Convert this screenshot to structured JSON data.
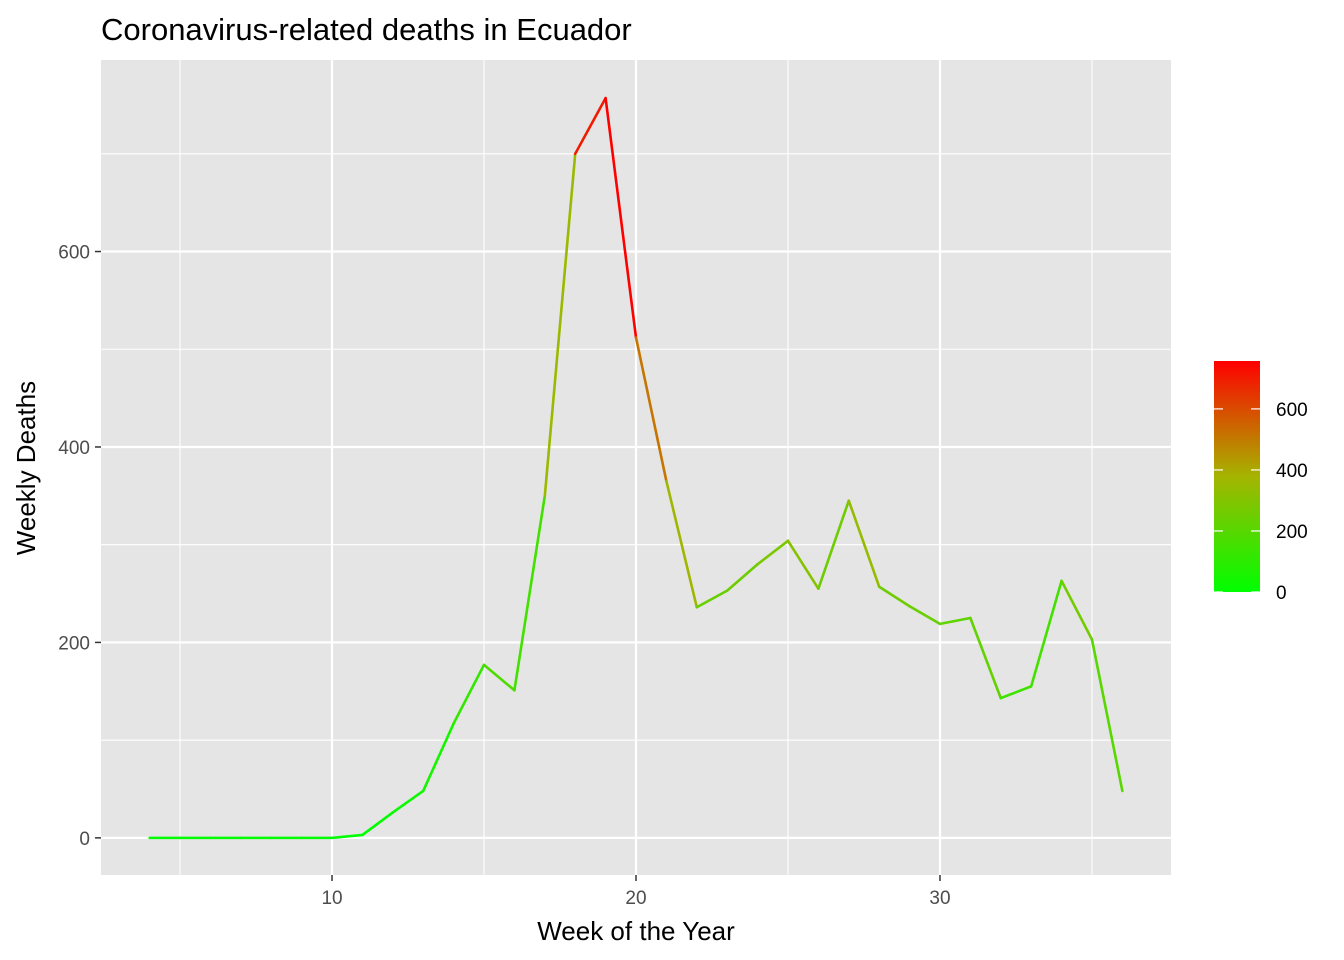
{
  "chart_data": {
    "type": "line",
    "title": "Coronavirus-related deaths in Ecuador",
    "xlabel": "Week of the Year",
    "ylabel": "Weekly Deaths",
    "xlim": [
      2.4,
      37.6
    ],
    "ylim": [
      -38,
      796
    ],
    "x_ticks": [
      10,
      20,
      30
    ],
    "x_minor_ticks": [
      5,
      15,
      25,
      35
    ],
    "y_ticks": [
      0,
      200,
      400,
      600
    ],
    "y_minor_ticks": [
      100,
      300,
      500,
      700
    ],
    "grid": true,
    "series": [
      {
        "x": [
          4,
          5,
          6,
          7,
          8,
          9,
          10,
          11,
          12,
          13,
          14,
          15,
          16,
          17,
          18,
          19,
          20,
          21,
          22,
          23,
          24,
          25,
          26,
          27,
          28,
          29,
          30,
          31,
          32,
          33,
          34,
          35,
          36
        ],
        "values": [
          0,
          0,
          0,
          0,
          0,
          0,
          0,
          3,
          26,
          48,
          117,
          177,
          151,
          350,
          700,
          757,
          512,
          365,
          236,
          253,
          280,
          304,
          255,
          345,
          257,
          237,
          219,
          225,
          143,
          155,
          263,
          203,
          48
        ]
      }
    ],
    "legend": {
      "position": "right",
      "ticks": [
        0,
        200,
        400,
        600
      ],
      "range": [
        0,
        757
      ],
      "colors": {
        "low": "#00ff00",
        "high": "#ff0000"
      }
    },
    "colors": {
      "panel": "#e5e5e5",
      "grid": "#ffffff"
    }
  }
}
